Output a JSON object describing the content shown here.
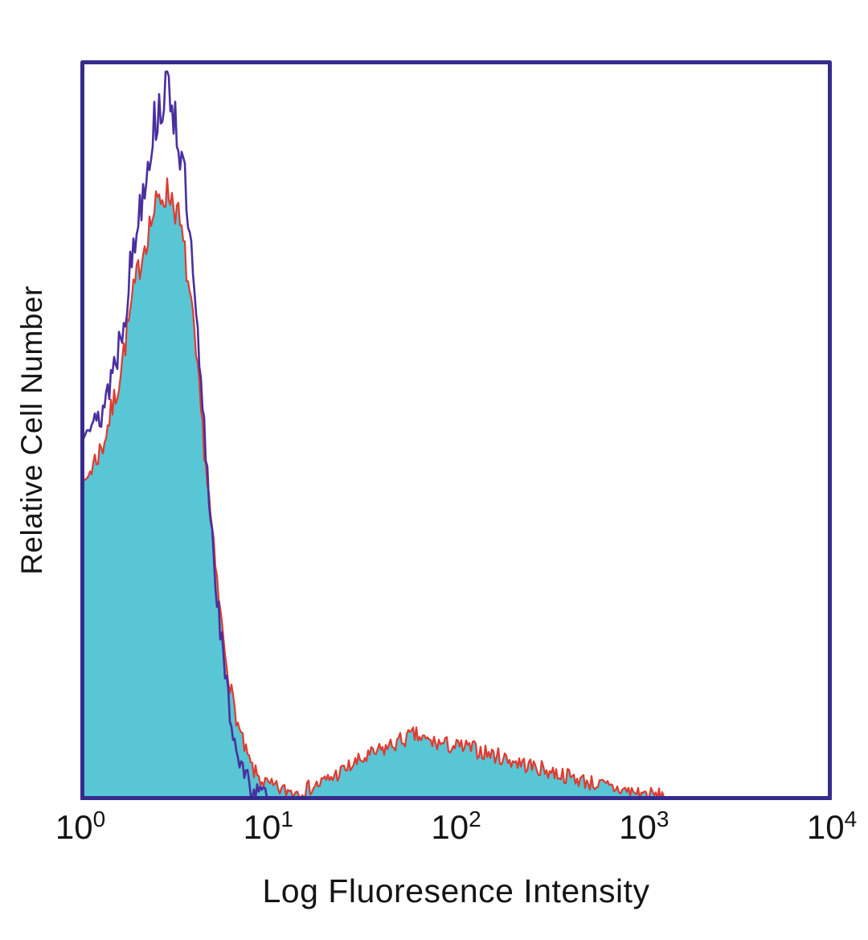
{
  "figure": {
    "background": "#ffffff",
    "text_color": "#141414"
  },
  "chart_data": {
    "type": "area",
    "subtype": "flow-cytometry-histogram-overlay",
    "title": "",
    "xlabel": "Log Fluoresence Intensity",
    "ylabel": "Relative Cell Number",
    "x_scale": "log10",
    "x_range_decades": [
      0,
      4
    ],
    "y_range": [
      0,
      1
    ],
    "y_ticks": "none",
    "grid": false,
    "legend": "none",
    "axis_color": "#362b8d",
    "x_ticks": [
      {
        "base": "10",
        "exp": "0"
      },
      {
        "base": "10",
        "exp": "1"
      },
      {
        "base": "10",
        "exp": "2"
      },
      {
        "base": "10",
        "exp": "3"
      },
      {
        "base": "10",
        "exp": "4"
      }
    ],
    "series": [
      {
        "name": "stained-sample-filled",
        "line_color": "#e03a30",
        "fill_color": "#58c6d4",
        "filled": true,
        "noise": 0.035,
        "seed": 7,
        "points": [
          [
            0.0,
            0.4
          ],
          [
            0.04,
            0.44
          ],
          [
            0.08,
            0.46
          ],
          [
            0.12,
            0.48
          ],
          [
            0.16,
            0.52
          ],
          [
            0.2,
            0.56
          ],
          [
            0.24,
            0.62
          ],
          [
            0.28,
            0.68
          ],
          [
            0.32,
            0.73
          ],
          [
            0.36,
            0.77
          ],
          [
            0.4,
            0.8
          ],
          [
            0.44,
            0.82
          ],
          [
            0.48,
            0.82
          ],
          [
            0.52,
            0.79
          ],
          [
            0.56,
            0.73
          ],
          [
            0.6,
            0.64
          ],
          [
            0.64,
            0.53
          ],
          [
            0.68,
            0.42
          ],
          [
            0.72,
            0.31
          ],
          [
            0.76,
            0.22
          ],
          [
            0.8,
            0.15
          ],
          [
            0.84,
            0.1
          ],
          [
            0.88,
            0.065
          ],
          [
            0.92,
            0.04
          ],
          [
            0.96,
            0.028
          ],
          [
            1.0,
            0.02
          ],
          [
            1.08,
            0.013
          ],
          [
            1.16,
            0.012
          ],
          [
            1.24,
            0.018
          ],
          [
            1.32,
            0.028
          ],
          [
            1.4,
            0.04
          ],
          [
            1.48,
            0.052
          ],
          [
            1.56,
            0.062
          ],
          [
            1.64,
            0.072
          ],
          [
            1.72,
            0.082
          ],
          [
            1.78,
            0.088
          ],
          [
            1.84,
            0.08
          ],
          [
            1.92,
            0.076
          ],
          [
            2.0,
            0.072
          ],
          [
            2.08,
            0.07
          ],
          [
            2.16,
            0.064
          ],
          [
            2.24,
            0.058
          ],
          [
            2.34,
            0.05
          ],
          [
            2.44,
            0.043
          ],
          [
            2.54,
            0.036
          ],
          [
            2.64,
            0.029
          ],
          [
            2.74,
            0.022
          ],
          [
            2.84,
            0.016
          ],
          [
            2.94,
            0.011
          ],
          [
            3.04,
            0.007
          ],
          [
            3.14,
            0.004
          ],
          [
            3.24,
            0.002
          ],
          [
            3.35,
            0.0
          ],
          [
            4.0,
            0.0
          ]
        ]
      },
      {
        "name": "control-outline",
        "line_color": "#4a2f9f",
        "fill_color": null,
        "filled": false,
        "noise": 0.05,
        "seed": 13,
        "points": [
          [
            0.0,
            0.5
          ],
          [
            0.04,
            0.53
          ],
          [
            0.08,
            0.5
          ],
          [
            0.12,
            0.53
          ],
          [
            0.16,
            0.57
          ],
          [
            0.2,
            0.61
          ],
          [
            0.24,
            0.67
          ],
          [
            0.28,
            0.74
          ],
          [
            0.32,
            0.81
          ],
          [
            0.36,
            0.87
          ],
          [
            0.4,
            0.92
          ],
          [
            0.44,
            0.95
          ],
          [
            0.48,
            0.96
          ],
          [
            0.52,
            0.9
          ],
          [
            0.56,
            0.82
          ],
          [
            0.6,
            0.7
          ],
          [
            0.64,
            0.56
          ],
          [
            0.68,
            0.43
          ],
          [
            0.72,
            0.3
          ],
          [
            0.76,
            0.19
          ],
          [
            0.8,
            0.11
          ],
          [
            0.84,
            0.06
          ],
          [
            0.88,
            0.03
          ],
          [
            0.92,
            0.015
          ],
          [
            0.96,
            0.007
          ],
          [
            1.0,
            0.003
          ],
          [
            1.06,
            0.0
          ],
          [
            4.0,
            0.0
          ]
        ]
      }
    ]
  }
}
